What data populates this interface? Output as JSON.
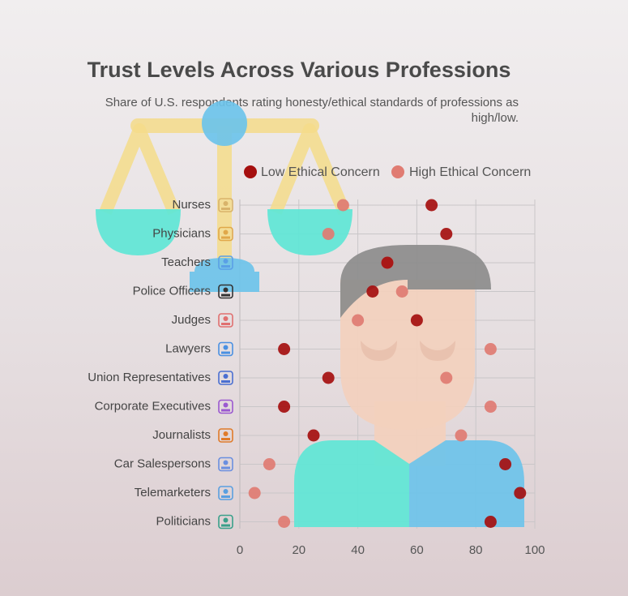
{
  "chart_data": {
    "type": "scatter",
    "title": "Trust Levels Across Various Professions",
    "subtitle_lines": [
      "Share of U.S. respondents rating honesty/ethical standards of professions as",
      "high/low."
    ],
    "xlabel": "",
    "ylabel": "",
    "xlim": [
      0,
      100
    ],
    "x_ticks": [
      "0",
      "20",
      "40",
      "60",
      "80",
      "100"
    ],
    "x_tick_values": [
      0,
      20,
      40,
      60,
      80,
      100
    ],
    "grid": true,
    "legend_position": "top",
    "categories": [
      "Nurses",
      "Physicians",
      "Teachers",
      "Police Officers",
      "Judges",
      "Lawyers",
      "Union Representatives",
      "Corporate Executives",
      "Journalists",
      "Car Salespersons",
      "Telemarketers",
      "Politicians"
    ],
    "category_icons": [
      "nurse-icon",
      "physician-icon",
      "teacher-icon",
      "police-officer-icon",
      "judge-icon",
      "lawyer-icon",
      "union-building-icon",
      "executive-icon",
      "newspaper-icon",
      "car-icon",
      "telemarketer-icon",
      "politician-icon"
    ],
    "series": [
      {
        "name": "Low Ethical Concern",
        "color": "#a50f0f",
        "values": [
          65,
          70,
          50,
          45,
          60,
          15,
          30,
          15,
          25,
          90,
          95,
          85
        ]
      },
      {
        "name": "High Ethical Concern",
        "color": "#e07b72",
        "values": [
          35,
          30,
          50,
          55,
          40,
          85,
          70,
          85,
          75,
          10,
          5,
          15
        ]
      }
    ]
  },
  "decoration": {
    "scale_color": "#f5dc8a",
    "pan_color": "#5ee6d6",
    "pivot_color": "#6cc3ea",
    "hair_color": "#8c8c8c",
    "skin_color": "#f3d0bd",
    "shirt_left_color": "#5ee6d6",
    "shirt_right_color": "#6cc3ea"
  }
}
